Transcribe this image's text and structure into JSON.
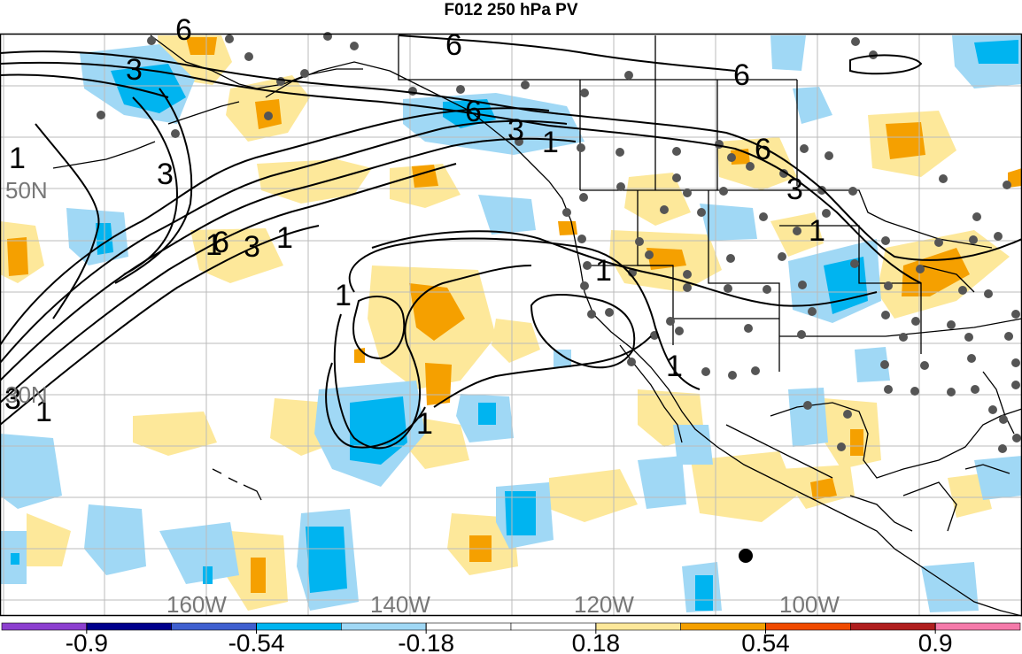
{
  "title": "F012 250 hPa PV",
  "latitude_labels": [
    {
      "text": "50N"
    },
    {
      "text": "30N"
    }
  ],
  "longitude_labels": [
    {
      "text": "160W"
    },
    {
      "text": "140W"
    },
    {
      "text": "120W"
    },
    {
      "text": "100W"
    }
  ],
  "contour_labels": [
    "6",
    "3",
    "1",
    "6",
    "3",
    "1",
    "6",
    "3",
    "1",
    "6",
    "3",
    "1",
    "1",
    "1",
    "1",
    "1",
    "6",
    "3",
    "1",
    "3",
    "1",
    "6"
  ],
  "colorbar": {
    "colors": [
      "#8c3fcf",
      "#00008c",
      "#3f5fcf",
      "#00b4f0",
      "#a0d8f5",
      "#ffffff",
      "#ffffff",
      "#fde89a",
      "#f5a000",
      "#f04a00",
      "#b01e1e",
      "#f57aaa"
    ],
    "tick_labels": [
      "-0.9",
      "-0.54",
      "-0.18",
      "0.18",
      "0.54",
      "0.9"
    ]
  },
  "colors": {
    "positive_light": "#fde89a",
    "positive_mid": "#f5a000",
    "negative_light": "#a0d8f5",
    "negative_mid": "#00b4f0",
    "station_dot": "#555555"
  }
}
